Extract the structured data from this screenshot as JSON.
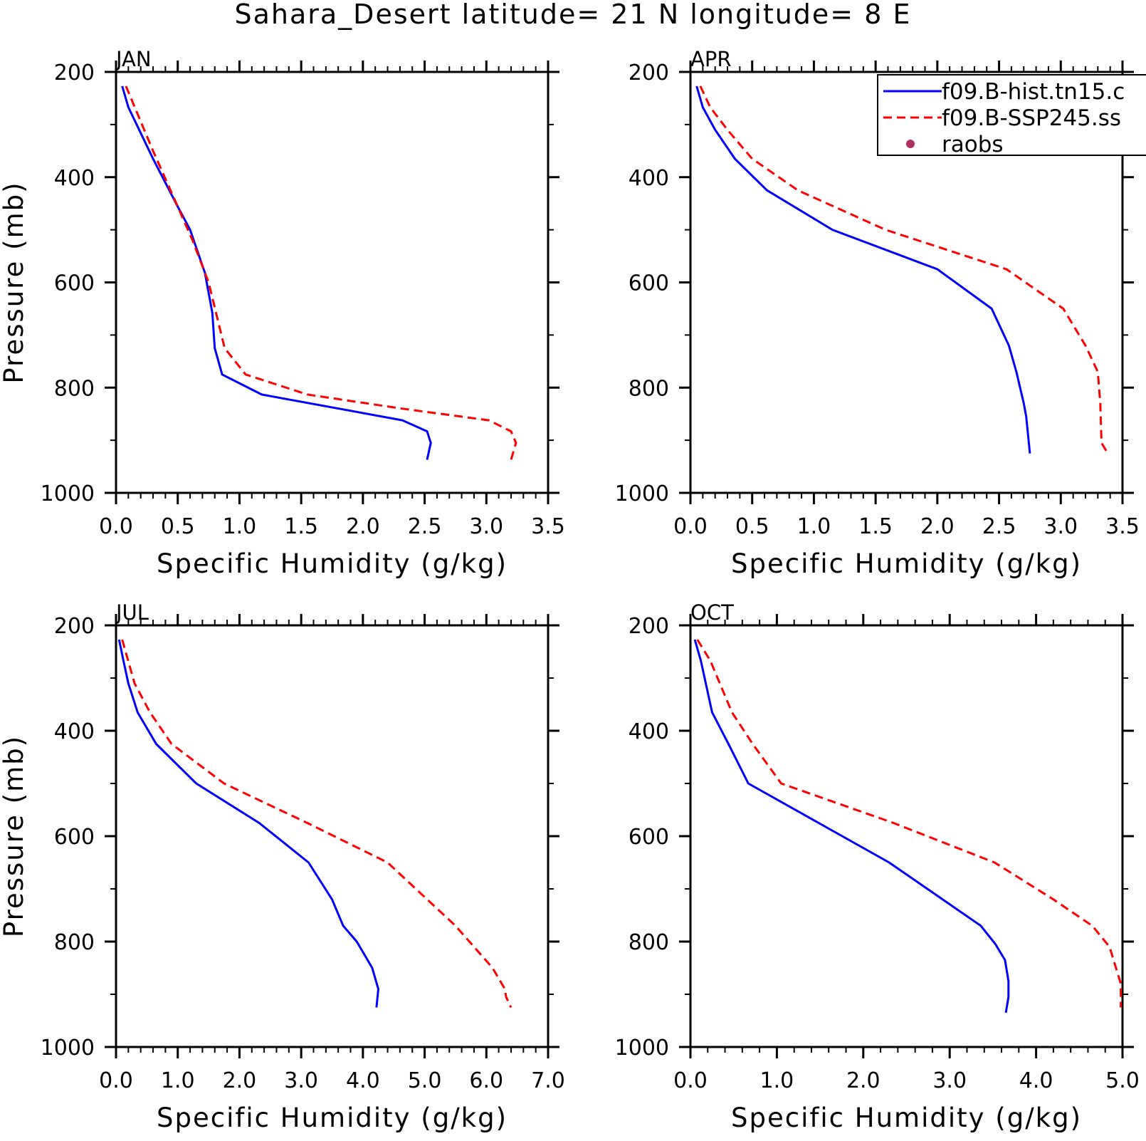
{
  "title": "Sahara_Desert  latitude= 21 N longitude= 8 E",
  "legend": {
    "entries": [
      {
        "label": "f09.B-hist.tn15.c",
        "style": "solid",
        "color": "#0000ff"
      },
      {
        "label": "f09.B-SSP245.ss",
        "style": "dashed",
        "color": "#ff0000"
      },
      {
        "label": "raobs",
        "style": "dot",
        "color": "#b03060"
      }
    ],
    "placement": "top-right of APR panel"
  },
  "chart_data": [
    {
      "type": "line",
      "panel": "JAN",
      "xlabel": "Specific Humidity (g/kg)",
      "ylabel": "Pressure (mb)",
      "xlim": [
        0,
        3.5
      ],
      "xticks": [
        "0.0",
        "0.5",
        "1.0",
        "1.5",
        "2.0",
        "2.5",
        "3.0",
        "3.5"
      ],
      "xtick_values": [
        0,
        0.5,
        1,
        1.5,
        2,
        2.5,
        3,
        3.5
      ],
      "ylim": [
        1000,
        200
      ],
      "yticks": [
        "200",
        "400",
        "600",
        "800",
        "1000"
      ],
      "ytick_values": [
        200,
        400,
        600,
        800,
        1000
      ],
      "series": [
        {
          "name": "f09.B-hist.tn15.c",
          "style": "solid",
          "x": [
            0.05,
            0.1,
            0.3,
            0.5,
            0.6,
            0.72,
            0.78,
            0.8,
            0.86,
            1.18,
            2.32,
            2.52,
            2.55,
            2.52
          ],
          "y": [
            227,
            267,
            365,
            456,
            500,
            582,
            658,
            725,
            775,
            813,
            862,
            883,
            905,
            937
          ]
        },
        {
          "name": "f09.B-SSP245.ss",
          "style": "dashed",
          "x": [
            0.08,
            0.3,
            0.5,
            0.62,
            0.75,
            0.88,
            1.05,
            1.55,
            2.32,
            3.02,
            3.2,
            3.24,
            3.2
          ],
          "y": [
            227,
            350,
            456,
            520,
            600,
            725,
            775,
            813,
            840,
            862,
            883,
            905,
            937
          ]
        }
      ]
    },
    {
      "type": "line",
      "panel": "APR",
      "xlabel": "Specific Humidity (g/kg)",
      "ylabel": "",
      "xlim": [
        0,
        3.5
      ],
      "xticks": [
        "0.0",
        "0.5",
        "1.0",
        "1.5",
        "2.0",
        "2.5",
        "3.0",
        "3.5"
      ],
      "xtick_values": [
        0,
        0.5,
        1,
        1.5,
        2,
        2.5,
        3,
        3.5
      ],
      "ylim": [
        1000,
        200
      ],
      "yticks": [
        "200",
        "400",
        "600",
        "800",
        "1000"
      ],
      "ytick_values": [
        200,
        400,
        600,
        800,
        1000
      ],
      "series": [
        {
          "name": "f09.B-hist.tn15.c",
          "style": "solid",
          "x": [
            0.05,
            0.1,
            0.2,
            0.36,
            0.62,
            1.15,
            2.0,
            2.44,
            2.58,
            2.64,
            2.7,
            2.72,
            2.75
          ],
          "y": [
            227,
            267,
            310,
            365,
            425,
            500,
            575,
            650,
            720,
            770,
            830,
            855,
            925
          ]
        },
        {
          "name": "f09.B-SSP245.ss",
          "style": "dashed",
          "x": [
            0.08,
            0.16,
            0.3,
            0.5,
            0.87,
            1.58,
            2.56,
            3.02,
            3.2,
            3.3,
            3.32,
            3.33,
            3.38
          ],
          "y": [
            227,
            267,
            310,
            365,
            425,
            500,
            575,
            650,
            720,
            770,
            830,
            905,
            925
          ]
        }
      ]
    },
    {
      "type": "line",
      "panel": "JUL",
      "xlabel": "Specific Humidity (g/kg)",
      "ylabel": "Pressure (mb)",
      "xlim": [
        0,
        7
      ],
      "xticks": [
        "0.0",
        "1.0",
        "2.0",
        "3.0",
        "4.0",
        "5.0",
        "6.0",
        "7.0"
      ],
      "xtick_values": [
        0,
        1,
        2,
        3,
        4,
        5,
        6,
        7
      ],
      "ylim": [
        1000,
        200
      ],
      "yticks": [
        "200",
        "400",
        "600",
        "800",
        "1000"
      ],
      "ytick_values": [
        200,
        400,
        600,
        800,
        1000
      ],
      "series": [
        {
          "name": "f09.B-hist.tn15.c",
          "style": "solid",
          "x": [
            0.05,
            0.12,
            0.2,
            0.35,
            0.65,
            1.3,
            2.32,
            3.12,
            3.5,
            3.68,
            3.9,
            4.15,
            4.25,
            4.22
          ],
          "y": [
            227,
            267,
            310,
            365,
            425,
            500,
            575,
            650,
            720,
            770,
            800,
            850,
            890,
            925
          ]
        },
        {
          "name": "f09.B-SSP245.ss",
          "style": "dashed",
          "x": [
            0.1,
            0.3,
            0.55,
            0.9,
            1.75,
            3.1,
            4.4,
            5.5,
            6.1,
            6.3,
            6.32,
            6.4
          ],
          "y": [
            227,
            310,
            365,
            425,
            500,
            575,
            650,
            770,
            850,
            890,
            905,
            925
          ]
        }
      ]
    },
    {
      "type": "line",
      "panel": "OCT",
      "xlabel": "Specific Humidity (g/kg)",
      "ylabel": "",
      "xlim": [
        0,
        5
      ],
      "xticks": [
        "0.0",
        "1.0",
        "2.0",
        "3.0",
        "4.0",
        "5.0"
      ],
      "xtick_values": [
        0,
        1,
        2,
        3,
        4,
        5
      ],
      "ylim": [
        1000,
        200
      ],
      "yticks": [
        "200",
        "400",
        "600",
        "800",
        "1000"
      ],
      "ytick_values": [
        200,
        400,
        600,
        800,
        1000
      ],
      "series": [
        {
          "name": "f09.B-hist.tn15.c",
          "style": "solid",
          "x": [
            0.05,
            0.12,
            0.25,
            0.44,
            0.67,
            2.3,
            3.36,
            3.53,
            3.64,
            3.68,
            3.68,
            3.65
          ],
          "y": [
            227,
            267,
            365,
            425,
            500,
            650,
            770,
            805,
            835,
            875,
            905,
            935
          ]
        },
        {
          "name": "f09.B-SSP245.ss",
          "style": "dashed",
          "x": [
            0.08,
            0.23,
            0.48,
            0.72,
            1.05,
            2.35,
            3.52,
            4.2,
            4.65,
            4.85,
            4.98,
            4.98
          ],
          "y": [
            227,
            267,
            365,
            425,
            500,
            575,
            650,
            720,
            770,
            810,
            880,
            925
          ]
        }
      ]
    }
  ]
}
